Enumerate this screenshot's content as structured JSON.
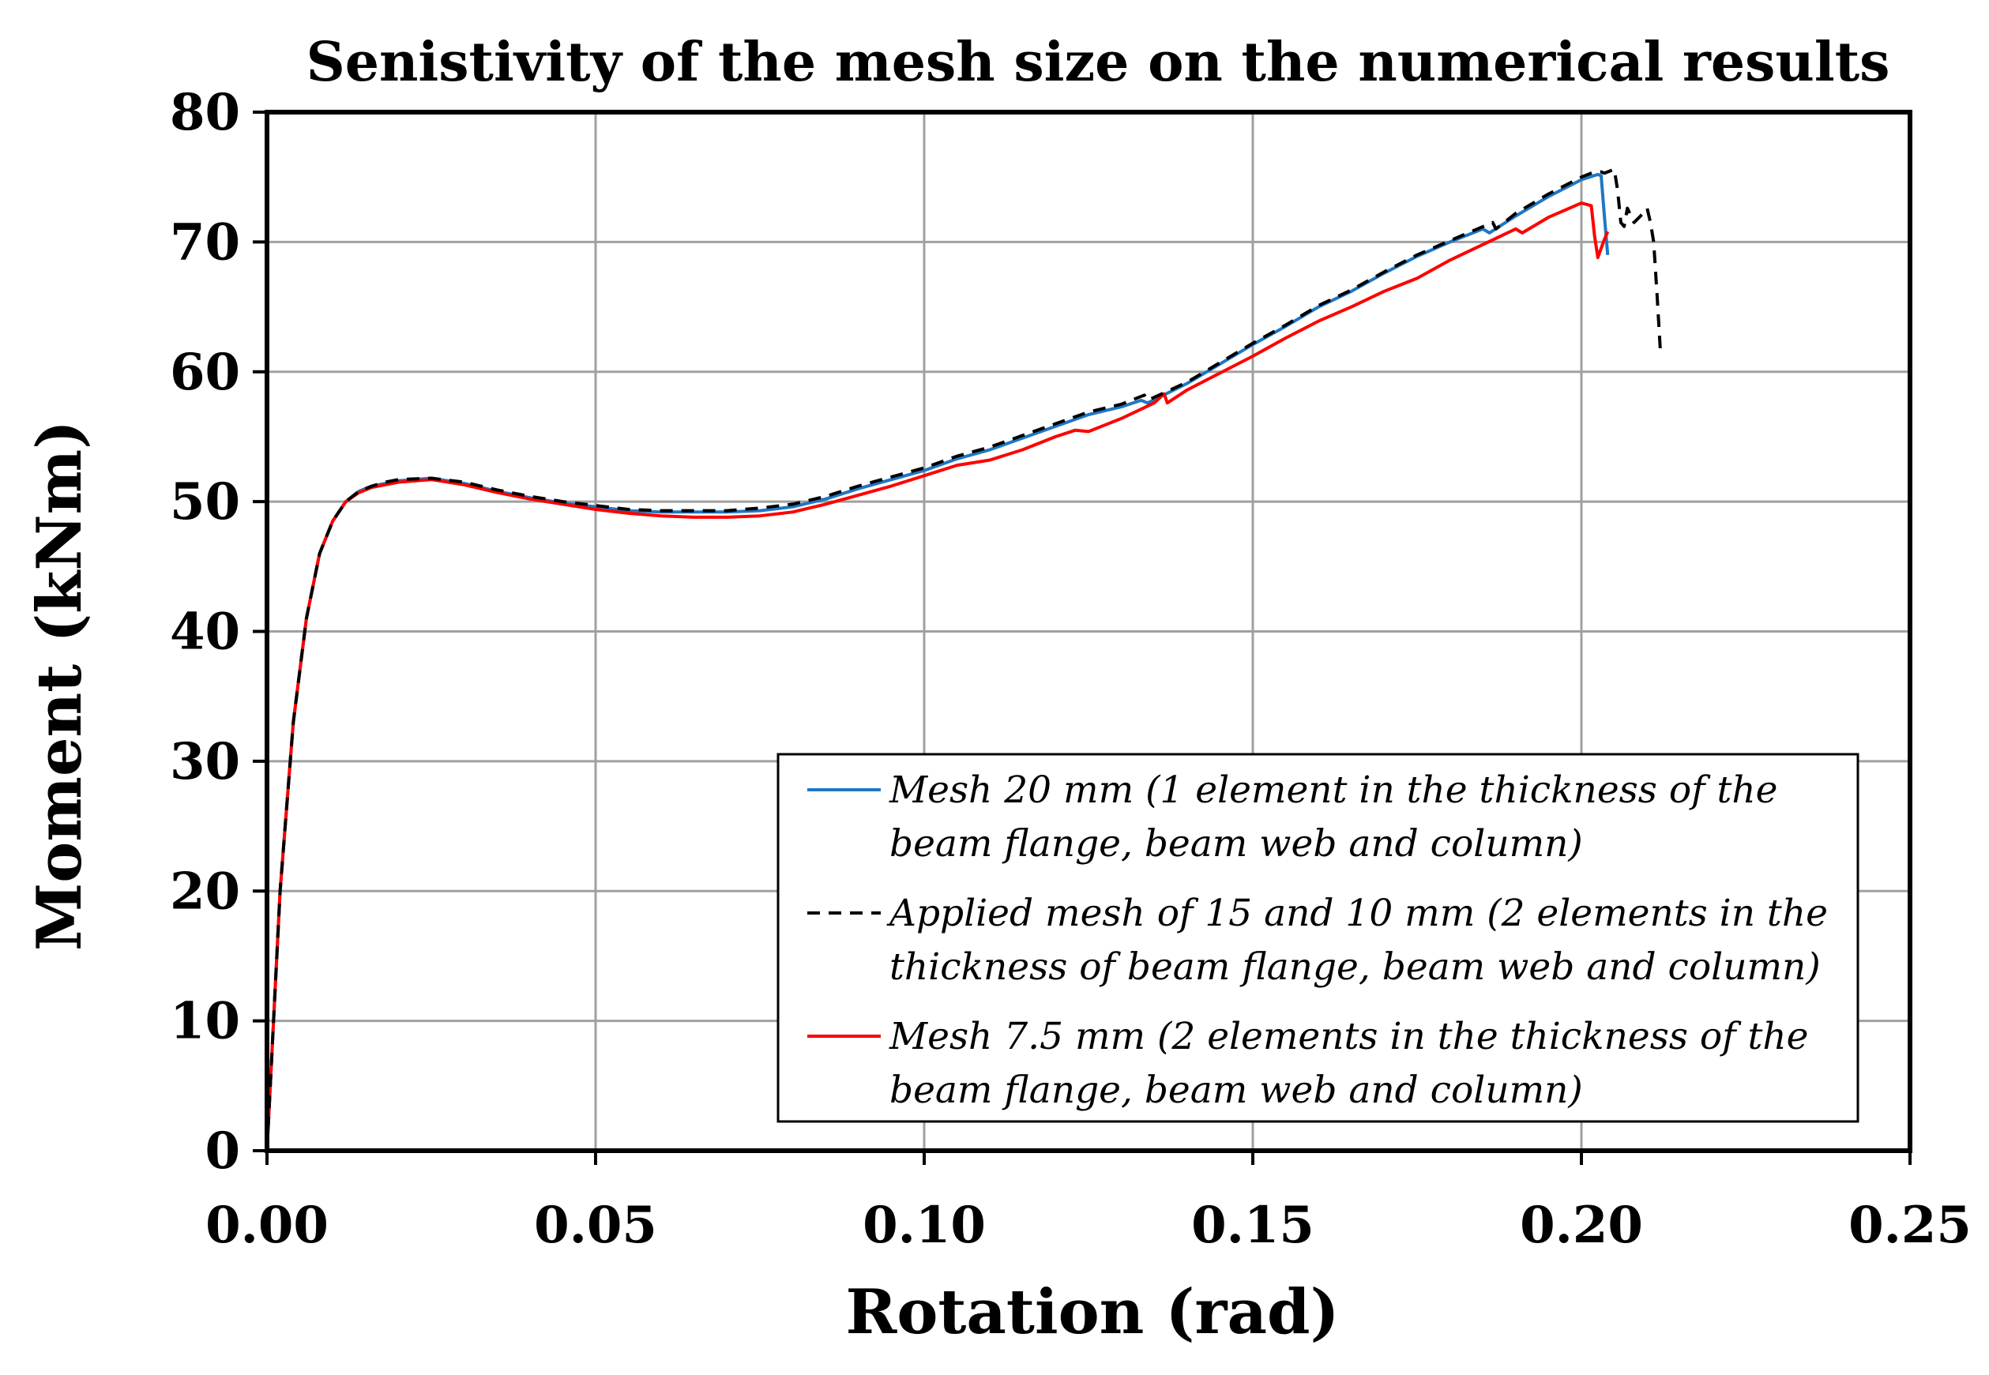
{
  "chart_data": {
    "type": "line",
    "title": "Senistivity of the mesh size on the numerical results",
    "xlabel": "Rotation (rad)",
    "ylabel": "Moment (kNm)",
    "xlim": [
      0,
      0.25
    ],
    "ylim": [
      0,
      80
    ],
    "xticks": [
      0,
      0.05,
      0.1,
      0.15,
      0.2,
      0.25
    ],
    "xtick_labels": [
      "0.00",
      "0.05",
      "0.10",
      "0.15",
      "0.20",
      "0.25"
    ],
    "yticks": [
      0,
      10,
      20,
      30,
      40,
      50,
      60,
      70,
      80
    ],
    "ytick_labels": [
      "0",
      "10",
      "20",
      "30",
      "40",
      "50",
      "60",
      "70",
      "80"
    ],
    "grid": true,
    "legend_position": "bottom-right",
    "series": [
      {
        "name": "Mesh 20 mm (1 element in the thickness of the beam flange, beam web and column)",
        "legend_lines": [
          "Mesh 20 mm (1 element in the thickness of the",
          "beam flange, beam web and column)"
        ],
        "color": "#1f77c4",
        "dash": "solid",
        "x": [
          0,
          0.002,
          0.004,
          0.006,
          0.008,
          0.01,
          0.012,
          0.014,
          0.016,
          0.018,
          0.02,
          0.025,
          0.03,
          0.035,
          0.04,
          0.045,
          0.05,
          0.055,
          0.06,
          0.065,
          0.07,
          0.075,
          0.08,
          0.085,
          0.09,
          0.095,
          0.1,
          0.105,
          0.11,
          0.115,
          0.12,
          0.125,
          0.13,
          0.133,
          0.134,
          0.14,
          0.145,
          0.15,
          0.155,
          0.16,
          0.165,
          0.17,
          0.175,
          0.18,
          0.185,
          0.186,
          0.19,
          0.195,
          0.2,
          0.2025,
          0.203,
          0.2035,
          0.204
        ],
        "y": [
          0,
          20,
          33,
          41,
          46,
          48.5,
          50,
          50.8,
          51.2,
          51.4,
          51.6,
          51.8,
          51.4,
          50.8,
          50.3,
          49.9,
          49.6,
          49.3,
          49.2,
          49.2,
          49.2,
          49.3,
          49.6,
          50.2,
          51,
          51.7,
          52.4,
          53.3,
          54,
          54.9,
          55.8,
          56.7,
          57.3,
          57.8,
          57.6,
          59.1,
          60.6,
          62.1,
          63.5,
          65,
          66.2,
          67.6,
          68.9,
          70,
          71,
          70.7,
          72,
          73.5,
          74.8,
          75.2,
          75.1,
          72,
          69
        ]
      },
      {
        "name": "Applied mesh of 15 and 10 mm (2 elements in the thickness of beam flange, beam web and column)",
        "legend_lines": [
          "Applied mesh of 15 and 10 mm (2 elements in the",
          "thickness of beam flange, beam web and column)"
        ],
        "color": "#000000",
        "dash": "dashed",
        "x": [
          0,
          0.002,
          0.004,
          0.006,
          0.008,
          0.01,
          0.012,
          0.014,
          0.016,
          0.018,
          0.02,
          0.025,
          0.03,
          0.035,
          0.04,
          0.045,
          0.05,
          0.055,
          0.06,
          0.065,
          0.07,
          0.075,
          0.08,
          0.085,
          0.09,
          0.095,
          0.1,
          0.105,
          0.11,
          0.115,
          0.12,
          0.125,
          0.13,
          0.1335,
          0.134,
          0.14,
          0.145,
          0.15,
          0.155,
          0.16,
          0.165,
          0.17,
          0.175,
          0.18,
          0.1865,
          0.187,
          0.19,
          0.195,
          0.2,
          0.202,
          0.203,
          0.2035,
          0.205,
          0.2055,
          0.206,
          0.2065,
          0.207,
          0.208,
          0.209,
          0.21,
          0.2105,
          0.211,
          0.2115,
          0.212
        ],
        "y": [
          0,
          20,
          33,
          41,
          46,
          48.5,
          50,
          50.8,
          51.2,
          51.5,
          51.7,
          51.8,
          51.5,
          50.9,
          50.4,
          50,
          49.7,
          49.4,
          49.3,
          49.3,
          49.3,
          49.5,
          49.8,
          50.4,
          51.2,
          51.9,
          52.6,
          53.5,
          54.2,
          55.1,
          56,
          56.9,
          57.5,
          58.2,
          57.8,
          59.2,
          60.7,
          62.2,
          63.6,
          65.1,
          66.3,
          67.7,
          69,
          70.1,
          71.5,
          71,
          72.2,
          73.7,
          75,
          75.4,
          75.4,
          75.3,
          75.6,
          74,
          71.5,
          71.2,
          72.6,
          71.5,
          72,
          72.6,
          71.5,
          70,
          66,
          61.8
        ]
      },
      {
        "name": "Mesh 7.5 mm (2 elements in the thickness of the beam flange, beam web and column)",
        "legend_lines": [
          "Mesh 7.5 mm (2 elements in the thickness of the",
          "beam flange, beam web and column)"
        ],
        "color": "#ff0000",
        "dash": "solid",
        "x": [
          0,
          0.002,
          0.004,
          0.006,
          0.008,
          0.01,
          0.012,
          0.014,
          0.016,
          0.018,
          0.02,
          0.025,
          0.03,
          0.035,
          0.04,
          0.045,
          0.05,
          0.055,
          0.06,
          0.065,
          0.07,
          0.075,
          0.08,
          0.085,
          0.09,
          0.095,
          0.1,
          0.105,
          0.11,
          0.115,
          0.12,
          0.123,
          0.125,
          0.13,
          0.135,
          0.1365,
          0.137,
          0.14,
          0.145,
          0.15,
          0.155,
          0.16,
          0.165,
          0.17,
          0.175,
          0.18,
          0.185,
          0.19,
          0.191,
          0.195,
          0.2,
          0.2015,
          0.202,
          0.2025,
          0.2035,
          0.204
        ],
        "y": [
          0,
          20,
          33,
          41,
          46,
          48.5,
          50,
          50.7,
          51.1,
          51.3,
          51.5,
          51.7,
          51.3,
          50.7,
          50.2,
          49.8,
          49.4,
          49.1,
          48.9,
          48.8,
          48.8,
          48.9,
          49.2,
          49.8,
          50.5,
          51.2,
          52,
          52.8,
          53.2,
          54,
          55,
          55.5,
          55.4,
          56.4,
          57.6,
          58.3,
          57.6,
          58.6,
          59.9,
          61.2,
          62.6,
          63.9,
          65,
          66.2,
          67.2,
          68.6,
          69.8,
          71,
          70.7,
          71.9,
          73,
          72.8,
          70.5,
          68.8,
          70.2,
          70.8
        ]
      }
    ]
  }
}
